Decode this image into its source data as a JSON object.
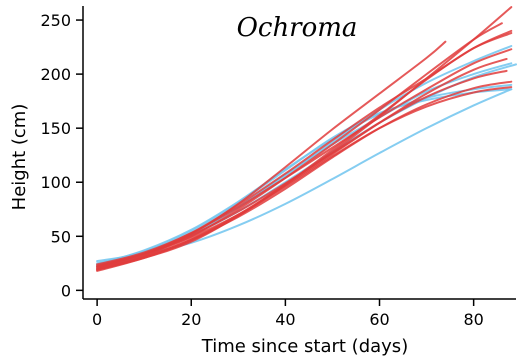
{
  "chart_data": {
    "type": "line",
    "title": "Ochroma",
    "xlabel": "Time since start (days)",
    "ylabel": "Height (cm)",
    "xlim": [
      -3,
      89
    ],
    "ylim": [
      -8,
      263
    ],
    "xticks": [
      0,
      20,
      40,
      60,
      80
    ],
    "yticks": [
      0,
      50,
      100,
      150,
      200,
      250
    ],
    "grid": false,
    "colors": {
      "red": "#e03c3c",
      "blue": "#78c8f0"
    },
    "series": [
      {
        "color": "blue",
        "x": [
          0,
          10,
          20,
          30,
          40,
          50,
          60,
          70,
          80,
          88
        ],
        "y": [
          23,
          36,
          55,
          81,
          111,
          141,
          164,
          176,
          183,
          186
        ]
      },
      {
        "color": "blue",
        "x": [
          0,
          10,
          20,
          30,
          40,
          50,
          60,
          70,
          80,
          88
        ],
        "y": [
          24,
          37,
          56,
          82,
          112,
          140,
          163,
          178,
          186,
          190
        ]
      },
      {
        "color": "blue",
        "x": [
          0,
          10,
          20,
          30,
          40,
          50,
          60,
          70,
          80,
          89
        ],
        "y": [
          25,
          36,
          51,
          73,
          100,
          128,
          155,
          178,
          197,
          209
        ]
      },
      {
        "color": "blue",
        "x": [
          0,
          10,
          20,
          30,
          40,
          50,
          60,
          70,
          80,
          88
        ],
        "y": [
          22,
          34,
          52,
          77,
          107,
          135,
          160,
          184,
          200,
          210
        ]
      },
      {
        "color": "blue",
        "x": [
          0,
          10,
          20,
          30,
          40,
          50,
          60,
          70,
          80,
          88
        ],
        "y": [
          27,
          34,
          44,
          60,
          80,
          103,
          127,
          150,
          171,
          186
        ]
      },
      {
        "color": "blue",
        "x": [
          0,
          10,
          20,
          30,
          40,
          50,
          60,
          70,
          80,
          88
        ],
        "y": [
          21,
          33,
          52,
          77,
          106,
          137,
          167,
          192,
          212,
          226
        ]
      },
      {
        "color": "red",
        "x": [
          0,
          10,
          20,
          30,
          40,
          50,
          60,
          70,
          74
        ],
        "y": [
          20,
          32,
          52,
          80,
          114,
          149,
          182,
          215,
          230
        ]
      },
      {
        "color": "red",
        "x": [
          0,
          10,
          20,
          30,
          40,
          50,
          60,
          70,
          80,
          86
        ],
        "y": [
          23,
          34,
          50,
          75,
          104,
          135,
          167,
          200,
          232,
          247
        ]
      },
      {
        "color": "red",
        "x": [
          0,
          10,
          20,
          30,
          40,
          50,
          60,
          70,
          80,
          88
        ],
        "y": [
          19,
          30,
          45,
          69,
          98,
          128,
          161,
          196,
          232,
          262
        ]
      },
      {
        "color": "red",
        "x": [
          0,
          10,
          20,
          30,
          40,
          50,
          60,
          70,
          80,
          87
        ],
        "y": [
          18,
          30,
          46,
          69,
          97,
          126,
          155,
          182,
          204,
          214
        ]
      },
      {
        "color": "red",
        "x": [
          0,
          10,
          20,
          30,
          40,
          50,
          60,
          70,
          80,
          87
        ],
        "y": [
          21,
          34,
          51,
          73,
          99,
          127,
          155,
          179,
          196,
          203
        ]
      },
      {
        "color": "red",
        "x": [
          0,
          10,
          20,
          30,
          40,
          50,
          60,
          70,
          80,
          88
        ],
        "y": [
          19,
          31,
          47,
          68,
          94,
          123,
          150,
          172,
          187,
          193
        ]
      },
      {
        "color": "red",
        "x": [
          0,
          10,
          20,
          30,
          40,
          50,
          60,
          70,
          80,
          88
        ],
        "y": [
          22,
          33,
          49,
          70,
          96,
          124,
          150,
          170,
          183,
          188
        ]
      },
      {
        "color": "red",
        "x": [
          0,
          10,
          20,
          30,
          40,
          50,
          60,
          70,
          80,
          88
        ],
        "y": [
          20,
          31,
          47,
          70,
          98,
          130,
          162,
          195,
          224,
          238
        ]
      },
      {
        "color": "red",
        "x": [
          0,
          10,
          20,
          30,
          40,
          50,
          60,
          70,
          80,
          88
        ],
        "y": [
          22,
          34,
          53,
          79,
          108,
          139,
          169,
          196,
          224,
          240
        ]
      },
      {
        "color": "red",
        "x": [
          0,
          10,
          20,
          30,
          40,
          50,
          60,
          70,
          80,
          88
        ],
        "y": [
          24,
          35,
          53,
          77,
          104,
          132,
          160,
          186,
          210,
          223
        ]
      }
    ]
  }
}
